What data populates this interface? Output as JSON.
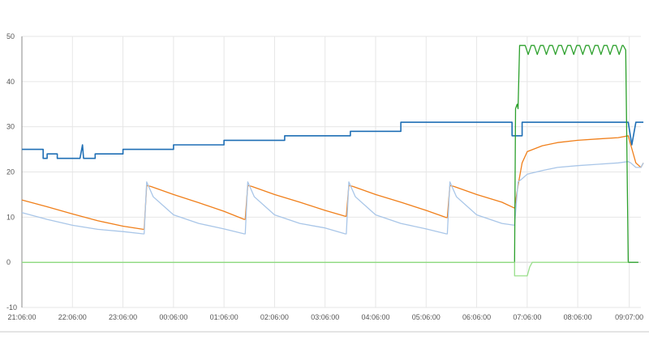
{
  "chart_data": {
    "type": "line",
    "title": "",
    "xlabel": "",
    "ylabel": "",
    "ylim": [
      -10,
      50
    ],
    "yticks": [
      50,
      40,
      30,
      20,
      10,
      0,
      -10
    ],
    "xticks": [
      "21:06:00",
      "22:06:00",
      "23:06:00",
      "00:06:00",
      "01:06:00",
      "02:06:00",
      "03:06:00",
      "04:06:00",
      "05:06:00",
      "06:06:00",
      "07:06:00",
      "08:06:00",
      "09:07:00"
    ],
    "grid": true,
    "legend": "none",
    "x_unit": "hours since 21:06:00",
    "series": [
      {
        "color": "#1f6fb5",
        "x": [
          0,
          0.42,
          0.42,
          0.5,
          0.5,
          0.7,
          0.7,
          1.15,
          1.2,
          1.22,
          1.22,
          1.45,
          1.45,
          2.0,
          2.0,
          3.0,
          3.0,
          4.0,
          4.0,
          5.2,
          5.2,
          6.5,
          6.5,
          7.5,
          7.5,
          8.95,
          8.95,
          9.7,
          9.7,
          9.9,
          9.9,
          12.0,
          12.07,
          12.15,
          12.2,
          12.3
        ],
        "values": [
          25,
          25,
          23,
          23,
          24,
          24,
          23,
          23,
          26,
          23,
          23,
          23,
          24,
          24,
          25,
          25,
          26,
          26,
          27,
          27,
          28,
          28,
          29,
          29,
          31,
          31,
          31,
          31,
          28,
          28,
          31,
          31,
          26,
          31,
          31,
          31
        ]
      },
      {
        "color": "#f07f1a",
        "x": [
          0,
          0.5,
          1.0,
          1.5,
          2.0,
          2.4,
          2.42,
          2.47,
          2.55,
          3.0,
          3.5,
          4.0,
          4.4,
          4.42,
          4.47,
          4.55,
          5.0,
          5.5,
          6.0,
          6.4,
          6.42,
          6.47,
          6.55,
          7.0,
          7.5,
          8.0,
          8.4,
          8.42,
          8.47,
          8.55,
          9.0,
          9.5,
          9.75,
          9.75,
          9.82,
          9.9,
          10.0,
          10.3,
          10.6,
          11.0,
          11.4,
          11.8,
          12.0,
          12.05,
          12.15,
          12.25,
          12.3
        ],
        "values": [
          13.8,
          12.3,
          10.7,
          9.2,
          8.0,
          7.3,
          7.3,
          17.0,
          16.8,
          15.0,
          13.2,
          11.3,
          9.5,
          9.5,
          17.0,
          16.8,
          15.0,
          13.3,
          11.5,
          10.2,
          10.2,
          17.0,
          16.8,
          15.0,
          13.3,
          11.5,
          9.9,
          9.9,
          17.0,
          16.8,
          15.0,
          13.3,
          12.0,
          12.0,
          17.0,
          22.0,
          24.5,
          25.8,
          26.5,
          27.0,
          27.3,
          27.6,
          28.0,
          26.0,
          22.0,
          21.0,
          22.0
        ]
      },
      {
        "color": "#a9c6e8",
        "x": [
          0,
          0.5,
          1.0,
          1.5,
          2.0,
          2.4,
          2.42,
          2.47,
          2.6,
          3.0,
          3.5,
          4.0,
          4.4,
          4.42,
          4.47,
          4.6,
          5.0,
          5.5,
          6.0,
          6.4,
          6.42,
          6.47,
          6.6,
          7.0,
          7.5,
          8.0,
          8.4,
          8.42,
          8.47,
          8.6,
          9.0,
          9.5,
          9.75,
          9.75,
          9.82,
          9.9,
          10.0,
          10.3,
          10.6,
          11.0,
          11.4,
          11.8,
          12.0,
          12.05,
          12.15,
          12.25,
          12.3
        ],
        "values": [
          11.0,
          9.5,
          8.2,
          7.3,
          6.8,
          6.3,
          6.3,
          17.8,
          14.5,
          10.5,
          8.6,
          7.4,
          6.3,
          6.3,
          17.8,
          14.5,
          10.5,
          8.6,
          7.6,
          6.3,
          6.3,
          17.8,
          14.5,
          10.5,
          8.6,
          7.4,
          6.3,
          6.3,
          17.8,
          14.5,
          10.5,
          8.6,
          8.2,
          8.2,
          17.8,
          18.5,
          19.5,
          20.3,
          21.0,
          21.4,
          21.7,
          22.0,
          22.3,
          22.0,
          21.0,
          21.0,
          22.0
        ]
      },
      {
        "color": "#2ca02c",
        "x": [
          0,
          9.75,
          9.77,
          9.8,
          9.82,
          9.85,
          9.9,
          11.9,
          11.95,
          12.0,
          12.2
        ],
        "values": [
          0,
          0,
          34,
          35,
          34,
          48,
          48,
          48,
          47,
          0,
          0
        ],
        "jitter_min": 46
      },
      {
        "color": "#98df8a",
        "x": [
          0,
          9.75,
          9.75,
          10.0,
          10.05,
          10.1,
          12.0
        ],
        "values": [
          0,
          0,
          -3,
          -3,
          -1,
          0,
          0
        ]
      }
    ]
  }
}
